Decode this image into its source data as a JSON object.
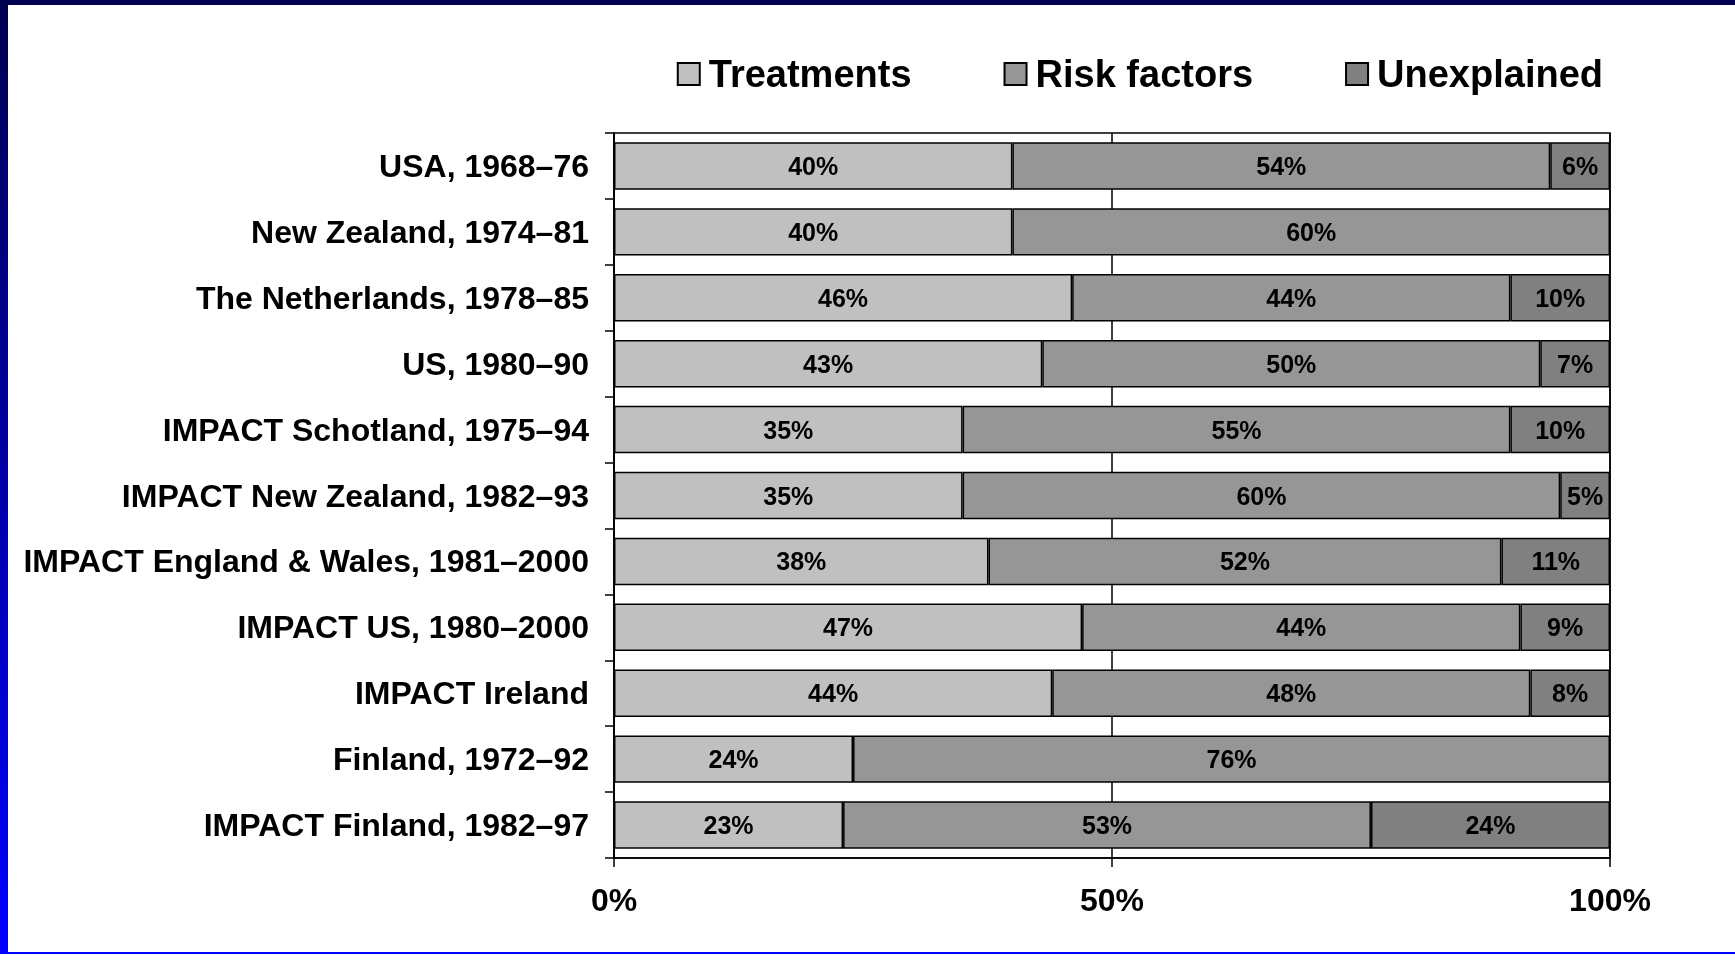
{
  "chart_data": {
    "type": "bar",
    "orientation": "horizontal",
    "stacked": true,
    "categories": [
      "USA, 1968–76",
      "New Zealand, 1974–81",
      "The Netherlands, 1978–85",
      "US, 1980–90",
      "IMPACT Schotland, 1975–94",
      "IMPACT New Zealand, 1982–93",
      "IMPACT England & Wales, 1981–2000",
      "IMPACT US, 1980–2000",
      "IMPACT Ireland",
      "Finland, 1972–92",
      "IMPACT Finland, 1982–97"
    ],
    "series": [
      {
        "name": "Treatments",
        "color": "#c0c0c0",
        "values": [
          40,
          40,
          46,
          43,
          35,
          35,
          37.6,
          47,
          44,
          24,
          23
        ],
        "value_labels": [
          "40%",
          "40%",
          "46%",
          "43%",
          "35%",
          "35%",
          "38%",
          "47%",
          "44%",
          "24%",
          "23%"
        ]
      },
      {
        "name": "Risk factors",
        "color": "#969696",
        "values": [
          54,
          60,
          44,
          50,
          55,
          60,
          51.5,
          44,
          48,
          76,
          53
        ],
        "value_labels": [
          "54%",
          "60%",
          "44%",
          "50%",
          "55%",
          "60%",
          "52%",
          "44%",
          "48%",
          "76%",
          "53%"
        ]
      },
      {
        "name": "Unexplained",
        "color": "#808080",
        "values": [
          6,
          null,
          10,
          7,
          10,
          5,
          10.9,
          9,
          8,
          null,
          24
        ],
        "value_labels": [
          "6%",
          null,
          "10%",
          "7%",
          "10%",
          "5%",
          "11%",
          "9%",
          "8%",
          null,
          "24%"
        ]
      }
    ],
    "xlim": [
      0,
      100
    ],
    "xticks": [
      {
        "value": 0,
        "label": "0%"
      },
      {
        "value": 50,
        "label": "50%"
      },
      {
        "value": 100,
        "label": "100%"
      }
    ],
    "grid": "x",
    "legend": "top right"
  }
}
